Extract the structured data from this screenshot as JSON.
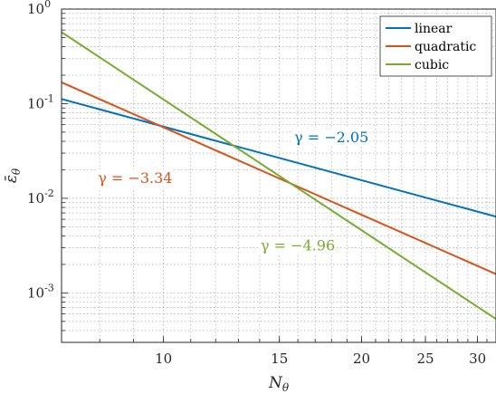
{
  "chart_data": {
    "type": "line",
    "x_scale": "log",
    "y_scale": "log",
    "grid": true,
    "minor_grid": true,
    "legend_position": "top-right",
    "xlabel": {
      "base": "N",
      "sub": "θ"
    },
    "ylabel": {
      "base": "ε̄",
      "sub": "θ"
    },
    "xlim": [
      7,
      32
    ],
    "ylim": [
      0.0003,
      1
    ],
    "x_ticks": [
      {
        "value": 10,
        "label": "10"
      },
      {
        "value": 15,
        "label": "15"
      },
      {
        "value": 20,
        "label": "20"
      },
      {
        "value": 25,
        "label": "25"
      },
      {
        "value": 30,
        "label": "30"
      }
    ],
    "y_ticks": [
      {
        "value": 0.001,
        "base": "10",
        "exp": "-3"
      },
      {
        "value": 0.01,
        "base": "10",
        "exp": "-2"
      },
      {
        "value": 0.1,
        "base": "10",
        "exp": "-1"
      },
      {
        "value": 1,
        "base": "10",
        "exp": "0"
      }
    ],
    "series": [
      {
        "name": "linear",
        "color": "#0072BD",
        "x": [
          7,
          32
        ],
        "y": [
          0.112,
          0.0064
        ]
      },
      {
        "name": "quadratic",
        "color": "#D95319",
        "x": [
          7,
          32
        ],
        "y": [
          0.168,
          0.00158
        ]
      },
      {
        "name": "cubic",
        "color": "#77AC30",
        "x": [
          7,
          32
        ],
        "y": [
          0.57,
          0.00053
        ]
      }
    ],
    "annotations": [
      {
        "text": "γ = −2.05",
        "color": "#0072BD",
        "series": "linear"
      },
      {
        "text": "γ = −3.34",
        "color": "#D95319",
        "series": "quadratic"
      },
      {
        "text": "γ = −4.96",
        "color": "#77AC30",
        "series": "cubic"
      }
    ]
  }
}
